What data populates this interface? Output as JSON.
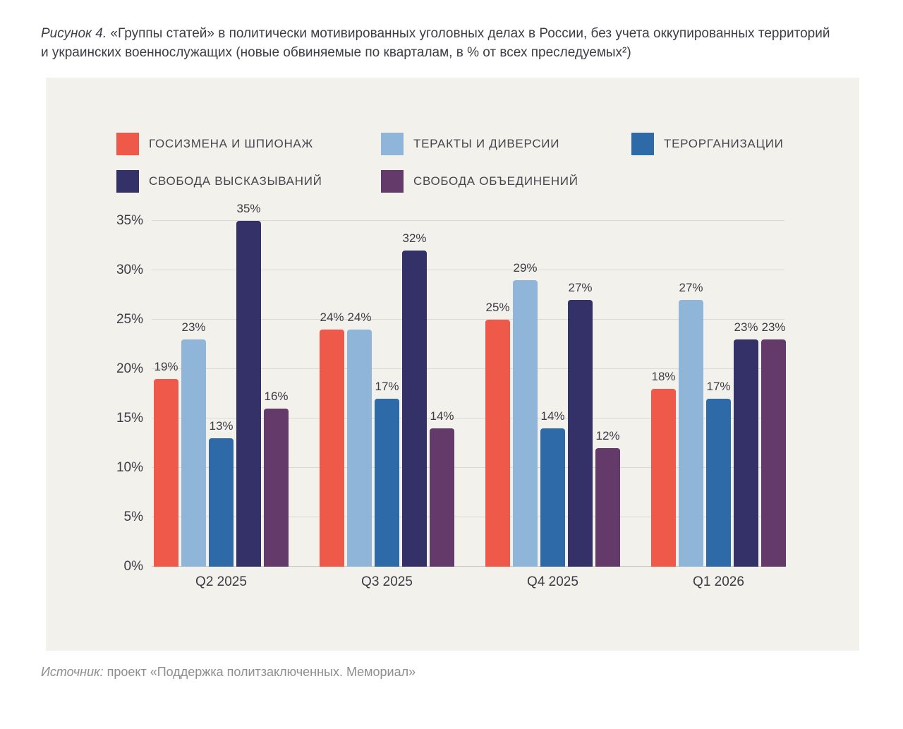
{
  "figure": {
    "label": "Рисунок 4.",
    "title": " «Группы статей» в политически мотивированных уголовных делах в России, без учета оккупированных территорий и украинских военнослужащих (новые обвиняемые по кварталам, в % от всех преследуемых²)"
  },
  "source": {
    "label": "Источник:",
    "text": " проект «Поддержка политзаключенных. Мемориал»"
  },
  "colors": {
    "panel_background": "#F2F1EC",
    "page_background": "#FFFFFF",
    "gridline": "#DBD9D3",
    "text_dark": "#3B3C45",
    "text_gray": "#8E8E91"
  },
  "chart_data": {
    "type": "bar",
    "categories": [
      "Q2 2025",
      "Q3 2025",
      "Q4 2025",
      "Q1 2026"
    ],
    "series": [
      {
        "name": "ГОСИЗМЕНА И ШПИОНАЖ",
        "color": "#EF594A",
        "values": [
          19,
          24,
          25,
          18
        ]
      },
      {
        "name": "ТЕРАКТЫ И ДИВЕРСИИ",
        "color": "#8FB5D9",
        "values": [
          23,
          24,
          29,
          27
        ]
      },
      {
        "name": "ТЕРОРГАНИЗАЦИИ",
        "color": "#2E6AA7",
        "values": [
          13,
          17,
          14,
          17
        ]
      },
      {
        "name": "СВОБОДА ВЫСКАЗЫВАНИЙ",
        "color": "#343168",
        "values": [
          35,
          32,
          27,
          23
        ]
      },
      {
        "name": "СВОБОДА ОБЪЕДИНЕНИЙ",
        "color": "#643A6B",
        "values": [
          16,
          14,
          12,
          23
        ]
      }
    ],
    "value_suffix": "%",
    "yticks": [
      0,
      5,
      10,
      15,
      20,
      25,
      30,
      35
    ],
    "ylim": [
      0,
      35
    ],
    "grid": true,
    "bar_labels": true,
    "legend_position": "top"
  }
}
